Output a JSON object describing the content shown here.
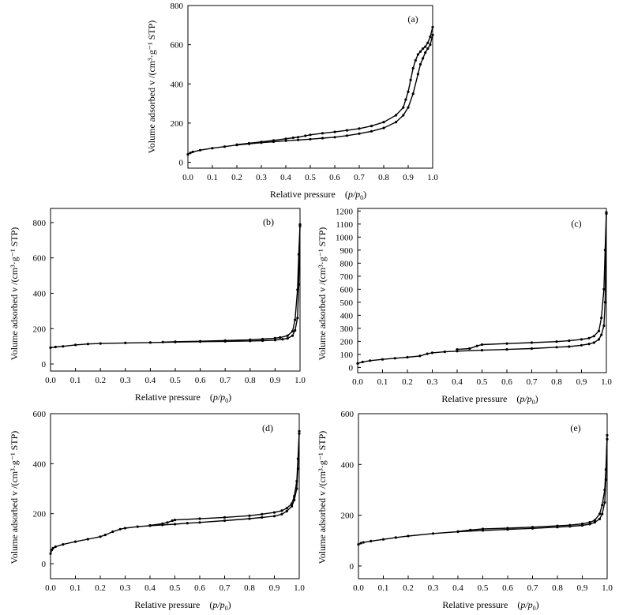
{
  "chart_data": [
    {
      "id": "a",
      "type": "line",
      "panel_label": "(a)",
      "xlabel": "Relative pressure",
      "xlabel_math": "p/p",
      "xlabel_sub": "0",
      "ylabel": "Volume adsorbed v /(cm³·g⁻¹ STP)",
      "xlim": [
        0,
        1.0
      ],
      "ylim": [
        -30,
        800
      ],
      "xticks": [
        "0.0",
        "0.1",
        "0.2",
        "0.3",
        "0.4",
        "0.5",
        "0.6",
        "0.7",
        "0.8",
        "0.9",
        "1.0"
      ],
      "yticks": [
        "0",
        "200",
        "400",
        "600",
        "800"
      ],
      "ytick_values": [
        0,
        200,
        400,
        600,
        800
      ],
      "series": [
        {
          "x": [
            0.0,
            0.01,
            0.02,
            0.05,
            0.1,
            0.15,
            0.2,
            0.25,
            0.3,
            0.35,
            0.4,
            0.45,
            0.5,
            0.55,
            0.6,
            0.65,
            0.7,
            0.75,
            0.8,
            0.85,
            0.88,
            0.9,
            0.92,
            0.94,
            0.95,
            0.96,
            0.97,
            0.98,
            0.99,
            1.0
          ],
          "y": [
            40,
            48,
            53,
            62,
            72,
            80,
            88,
            94,
            100,
            105,
            110,
            114,
            118,
            123,
            128,
            136,
            146,
            158,
            175,
            205,
            240,
            280,
            350,
            450,
            500,
            530,
            560,
            580,
            600,
            650
          ]
        },
        {
          "x": [
            1.0,
            0.99,
            0.98,
            0.97,
            0.96,
            0.95,
            0.94,
            0.93,
            0.92,
            0.91,
            0.9,
            0.89,
            0.88,
            0.85,
            0.8,
            0.75,
            0.7,
            0.65,
            0.6,
            0.55,
            0.5,
            0.48,
            0.45,
            0.43,
            0.4,
            0.35,
            0.3,
            0.25,
            0.2
          ],
          "y": [
            690,
            640,
            610,
            590,
            580,
            565,
            550,
            520,
            480,
            420,
            360,
            320,
            280,
            240,
            205,
            185,
            172,
            163,
            155,
            148,
            140,
            135,
            128,
            125,
            120,
            112,
            104,
            97,
            90
          ]
        }
      ]
    },
    {
      "id": "b",
      "type": "line",
      "panel_label": "(b)",
      "xlabel": "Relative pressure",
      "xlabel_math": "p/p",
      "xlabel_sub": "0",
      "ylabel": "Volume adsorbed v /(cm³·g⁻¹ STP)",
      "xlim": [
        0,
        1.0
      ],
      "ylim": [
        -40,
        880
      ],
      "xticks": [
        "0.0",
        "0.1",
        "0.2",
        "0.3",
        "0.4",
        "0.5",
        "0.6",
        "0.7",
        "0.8",
        "0.9",
        "1.0"
      ],
      "yticks": [
        "0",
        "200",
        "400",
        "600",
        "800"
      ],
      "ytick_values": [
        0,
        200,
        400,
        600,
        800
      ],
      "series": [
        {
          "x": [
            0.0,
            0.02,
            0.05,
            0.1,
            0.15,
            0.2,
            0.3,
            0.4,
            0.5,
            0.6,
            0.7,
            0.8,
            0.85,
            0.9,
            0.93,
            0.95,
            0.97,
            0.98,
            0.99,
            0.995,
            1.0
          ],
          "y": [
            92,
            96,
            100,
            108,
            113,
            116,
            119,
            121,
            124,
            126,
            128,
            130,
            132,
            135,
            140,
            145,
            160,
            190,
            260,
            450,
            780
          ]
        },
        {
          "x": [
            1.0,
            0.995,
            0.99,
            0.98,
            0.97,
            0.95,
            0.92,
            0.9,
            0.85,
            0.8,
            0.7,
            0.6,
            0.5,
            0.45
          ],
          "y": [
            790,
            620,
            420,
            250,
            185,
            160,
            150,
            146,
            141,
            137,
            133,
            129,
            126,
            124
          ]
        }
      ]
    },
    {
      "id": "c",
      "type": "line",
      "panel_label": "(c)",
      "xlabel": "Relative pressure",
      "xlabel_math": "p/p",
      "xlabel_sub": "0",
      "ylabel": "Volume adsorbed v /(cm³·g⁻¹ STP)",
      "xlim": [
        0,
        1.0
      ],
      "ylim": [
        -40,
        1220
      ],
      "xticks": [
        "0.0",
        "0.1",
        "0.2",
        "0.3",
        "0.4",
        "0.5",
        "0.6",
        "0.7",
        "0.8",
        "0.9",
        "1.0"
      ],
      "yticks": [
        "0",
        "100",
        "200",
        "300",
        "400",
        "500",
        "600",
        "700",
        "800",
        "900",
        "1000",
        "1100",
        "1200"
      ],
      "ytick_values": [
        0,
        100,
        200,
        300,
        400,
        500,
        600,
        700,
        800,
        900,
        1000,
        1100,
        1200
      ],
      "series": [
        {
          "x": [
            0.0,
            0.02,
            0.05,
            0.1,
            0.15,
            0.2,
            0.25,
            0.28,
            0.3,
            0.35,
            0.4,
            0.5,
            0.6,
            0.7,
            0.8,
            0.85,
            0.9,
            0.93,
            0.95,
            0.97,
            0.98,
            0.99,
            0.995,
            1.0
          ],
          "y": [
            30,
            42,
            52,
            62,
            70,
            78,
            88,
            105,
            112,
            120,
            125,
            132,
            138,
            145,
            155,
            160,
            170,
            180,
            190,
            215,
            250,
            320,
            500,
            1180
          ]
        },
        {
          "x": [
            1.0,
            0.995,
            0.99,
            0.98,
            0.97,
            0.95,
            0.93,
            0.9,
            0.85,
            0.8,
            0.7,
            0.6,
            0.5,
            0.48,
            0.45,
            0.4
          ],
          "y": [
            1190,
            900,
            600,
            380,
            280,
            240,
            225,
            215,
            205,
            198,
            190,
            183,
            175,
            165,
            145,
            138
          ]
        }
      ]
    },
    {
      "id": "d",
      "type": "line",
      "panel_label": "(d)",
      "xlabel": "Relative pressure",
      "xlabel_math": "p/p",
      "xlabel_sub": "0",
      "ylabel": "Volume adsorbed v /(cm³·g⁻¹ STP)",
      "xlim": [
        0,
        1.0
      ],
      "ylim": [
        -60,
        600
      ],
      "xticks": [
        "0.0",
        "0.1",
        "0.2",
        "0.3",
        "0.4",
        "0.5",
        "0.6",
        "0.7",
        "0.8",
        "0.9",
        "1.0"
      ],
      "yticks": [
        "0",
        "200",
        "400",
        "600"
      ],
      "ytick_values": [
        0,
        200,
        400,
        600
      ],
      "series": [
        {
          "x": [
            0.0,
            0.005,
            0.01,
            0.02,
            0.05,
            0.1,
            0.15,
            0.2,
            0.22,
            0.25,
            0.28,
            0.3,
            0.35,
            0.4,
            0.45,
            0.5,
            0.55,
            0.6,
            0.7,
            0.8,
            0.85,
            0.9,
            0.93,
            0.95,
            0.97,
            0.98,
            0.99,
            0.995,
            1.0
          ],
          "y": [
            40,
            55,
            62,
            68,
            77,
            88,
            98,
            108,
            115,
            128,
            138,
            142,
            148,
            152,
            155,
            158,
            162,
            165,
            172,
            180,
            185,
            190,
            198,
            210,
            230,
            255,
            300,
            380,
            520
          ]
        },
        {
          "x": [
            1.0,
            0.995,
            0.99,
            0.98,
            0.97,
            0.95,
            0.93,
            0.9,
            0.85,
            0.8,
            0.7,
            0.6,
            0.5,
            0.49,
            0.47,
            0.45,
            0.4
          ],
          "y": [
            530,
            420,
            330,
            270,
            240,
            222,
            212,
            205,
            198,
            192,
            185,
            180,
            175,
            172,
            165,
            160,
            153
          ]
        }
      ]
    },
    {
      "id": "e",
      "type": "line",
      "panel_label": "(e)",
      "xlabel": "Relative pressure",
      "xlabel_math": "p/p",
      "xlabel_sub": "0",
      "ylabel": "Volume adsorbed v /(cm³·g⁻¹ STP)",
      "xlim": [
        0,
        1.0
      ],
      "ylim": [
        -50,
        600
      ],
      "xticks": [
        "0.0",
        "0.1",
        "0.2",
        "0.3",
        "0.4",
        "0.5",
        "0.6",
        "0.7",
        "0.8",
        "0.9",
        "1.0"
      ],
      "yticks": [
        "0",
        "200",
        "400",
        "600"
      ],
      "ytick_values": [
        0,
        200,
        400,
        600
      ],
      "series": [
        {
          "x": [
            0.0,
            0.01,
            0.02,
            0.05,
            0.1,
            0.15,
            0.2,
            0.3,
            0.4,
            0.5,
            0.6,
            0.7,
            0.8,
            0.85,
            0.9,
            0.93,
            0.95,
            0.97,
            0.98,
            0.99,
            0.995,
            1.0
          ],
          "y": [
            85,
            90,
            93,
            98,
            105,
            112,
            118,
            128,
            135,
            140,
            144,
            148,
            153,
            156,
            160,
            165,
            172,
            185,
            205,
            250,
            340,
            500
          ]
        },
        {
          "x": [
            1.0,
            0.995,
            0.99,
            0.98,
            0.97,
            0.95,
            0.93,
            0.9,
            0.85,
            0.8,
            0.7,
            0.6,
            0.5,
            0.45,
            0.4
          ],
          "y": [
            515,
            380,
            300,
            240,
            205,
            180,
            172,
            166,
            161,
            158,
            153,
            149,
            146,
            142,
            136
          ]
        }
      ]
    }
  ]
}
